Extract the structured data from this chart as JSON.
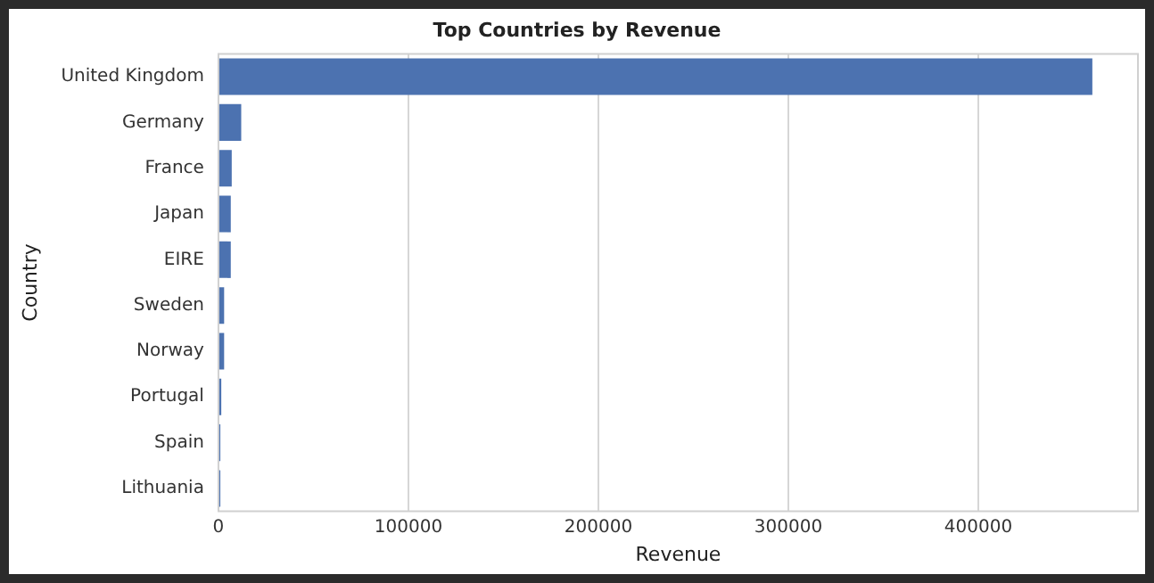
{
  "chart_data": {
    "type": "bar",
    "orientation": "horizontal",
    "title": "Top Countries by Revenue",
    "xlabel": "Revenue",
    "ylabel": "Country",
    "categories": [
      "United Kingdom",
      "Germany",
      "France",
      "Japan",
      "EIRE",
      "Sweden",
      "Norway",
      "Portugal",
      "Spain",
      "Lithuania"
    ],
    "values": [
      460000,
      12000,
      7000,
      6500,
      6500,
      3000,
      3000,
      1500,
      1000,
      1000
    ],
    "color": "#4c72b0",
    "xlim": [
      0,
      484000
    ],
    "xticks": [
      0,
      100000,
      200000,
      300000,
      400000
    ],
    "grid": "x",
    "legend": false
  }
}
